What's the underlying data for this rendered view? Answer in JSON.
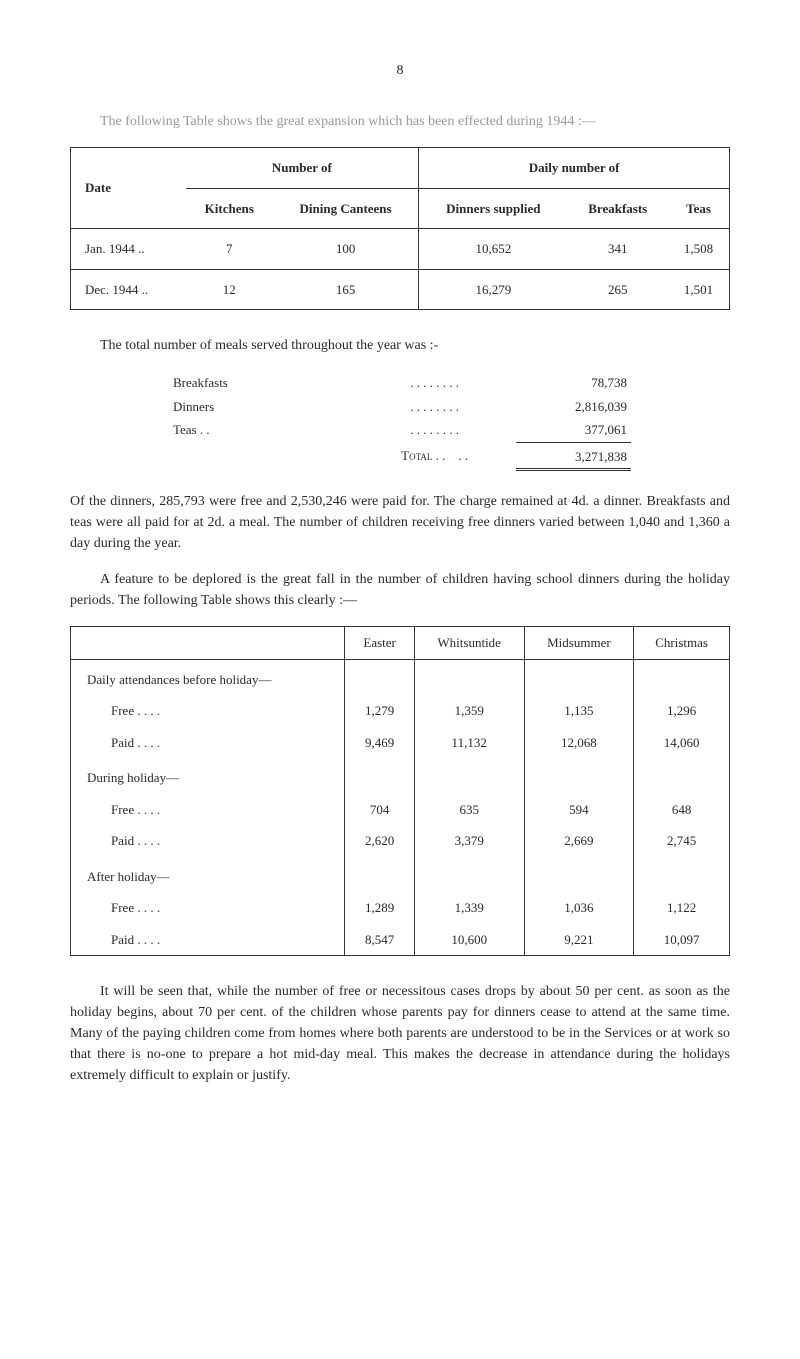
{
  "page_number": "8",
  "intro": "The following Table shows the great expansion which has been effected during 1944 :—",
  "table1": {
    "group_headers": [
      "Number of",
      "Daily number of"
    ],
    "sub_headers": [
      "Date",
      "Kitchens",
      "Dining Canteens",
      "Dinners supplied",
      "Breakfasts",
      "Teas"
    ],
    "rows": [
      [
        "Jan. 1944  ..",
        "7",
        "100",
        "10,652",
        "341",
        "1,508"
      ],
      [
        "Dec. 1944  ..",
        "12",
        "165",
        "16,279",
        "265",
        "1,501"
      ]
    ]
  },
  "totals_intro": "The total number of meals served throughout the year was :-",
  "totals": {
    "items": [
      {
        "label": "Breakfasts",
        "dots": ". .    . .    . .    . .",
        "value": "78,738"
      },
      {
        "label": "Dinners",
        "dots": ". .    . .    . .    . .",
        "value": "2,816,039"
      },
      {
        "label": "Teas  . .",
        "dots": ". .    . .    . .    . .",
        "value": "377,061"
      }
    ],
    "total_label": "Total . .",
    "total_dots": ". .",
    "total_value": "3,271,838"
  },
  "para2": "Of the dinners, 285,793 were free and 2,530,246 were paid for. The charge remained at 4d. a dinner. Breakfasts and teas were all paid for at 2d. a meal. The number of children receiving free dinners varied between 1,040 and 1,360 a day during the year.",
  "para3": "A feature to be deplored is the great fall in the number of children having school dinners during the holiday periods. The following Table shows this clearly :—",
  "table2": {
    "headers": [
      "",
      "Easter",
      "Whitsuntide",
      "Midsummer",
      "Christmas"
    ],
    "sections": [
      {
        "title": "Daily attendances before holiday—",
        "rows": [
          [
            "Free    . .    . .",
            "1,279",
            "1,359",
            "1,135",
            "1,296"
          ],
          [
            "Paid    . .    . .",
            "9,469",
            "11,132",
            "12,068",
            "14,060"
          ]
        ]
      },
      {
        "title": "During holiday—",
        "rows": [
          [
            "Free    . .    . .",
            "704",
            "635",
            "594",
            "648"
          ],
          [
            "Paid    . .    . .",
            "2,620",
            "3,379",
            "2,669",
            "2,745"
          ]
        ]
      },
      {
        "title": "After holiday—",
        "rows": [
          [
            "Free    . .    . .",
            "1,289",
            "1,339",
            "1,036",
            "1,122"
          ],
          [
            "Paid    . .    . .",
            "8,547",
            "10,600",
            "9,221",
            "10,097"
          ]
        ]
      }
    ]
  },
  "para4": "It will be seen that, while the number of free or necessitous cases drops by about 50 per cent. as soon as the holiday begins, about 70 per cent. of the children whose parents pay for dinners cease to attend at the same time. Many of the paying children come from homes where both parents are understood to be in the Services or at work so that there is no-one to prepare a hot mid-day meal. This makes the decrease in attendance during the holidays extremely difficult to explain or justify."
}
